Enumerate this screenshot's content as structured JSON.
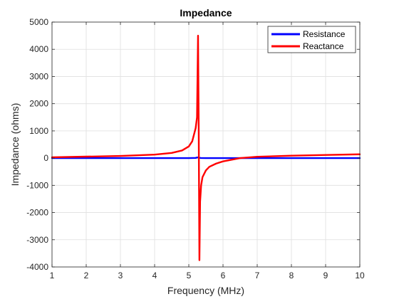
{
  "chart_data": {
    "type": "line",
    "title": "Impedance",
    "xlabel": "Frequency (MHz)",
    "ylabel": "Impedance (ohms)",
    "xlim": [
      1,
      10
    ],
    "ylim": [
      -4000,
      5000
    ],
    "xticks": [
      "1",
      "2",
      "3",
      "4",
      "5",
      "6",
      "7",
      "8",
      "9",
      "10"
    ],
    "yticks": [
      "5000",
      "4000",
      "3000",
      "2000",
      "1000",
      "0",
      "-1000",
      "-2000",
      "-3000",
      "-4000"
    ],
    "grid": true,
    "legend_position": "top-right",
    "series": [
      {
        "name": "Resistance",
        "color": "#0000ff",
        "x": [
          1,
          2,
          3,
          4,
          5,
          5.2,
          5.25,
          5.28,
          5.31,
          5.35,
          5.5,
          6,
          7,
          8,
          9,
          10
        ],
        "y": [
          0,
          0,
          0,
          0,
          2,
          8,
          25,
          25,
          12,
          4,
          1,
          0,
          0,
          0,
          0,
          0
        ]
      },
      {
        "name": "Reactance",
        "color": "#ff0000",
        "x": [
          1,
          2,
          3,
          4,
          4.5,
          4.8,
          5.0,
          5.1,
          5.2,
          5.24,
          5.27,
          5.29,
          5.31,
          5.33,
          5.36,
          5.4,
          5.5,
          5.6,
          5.8,
          6.0,
          6.5,
          7,
          8,
          9,
          10
        ],
        "y": [
          30,
          55,
          80,
          130,
          190,
          280,
          430,
          620,
          1100,
          1500,
          4500,
          1000,
          -3750,
          -1600,
          -1000,
          -700,
          -450,
          -320,
          -200,
          -120,
          0,
          50,
          90,
          115,
          140
        ]
      }
    ]
  }
}
